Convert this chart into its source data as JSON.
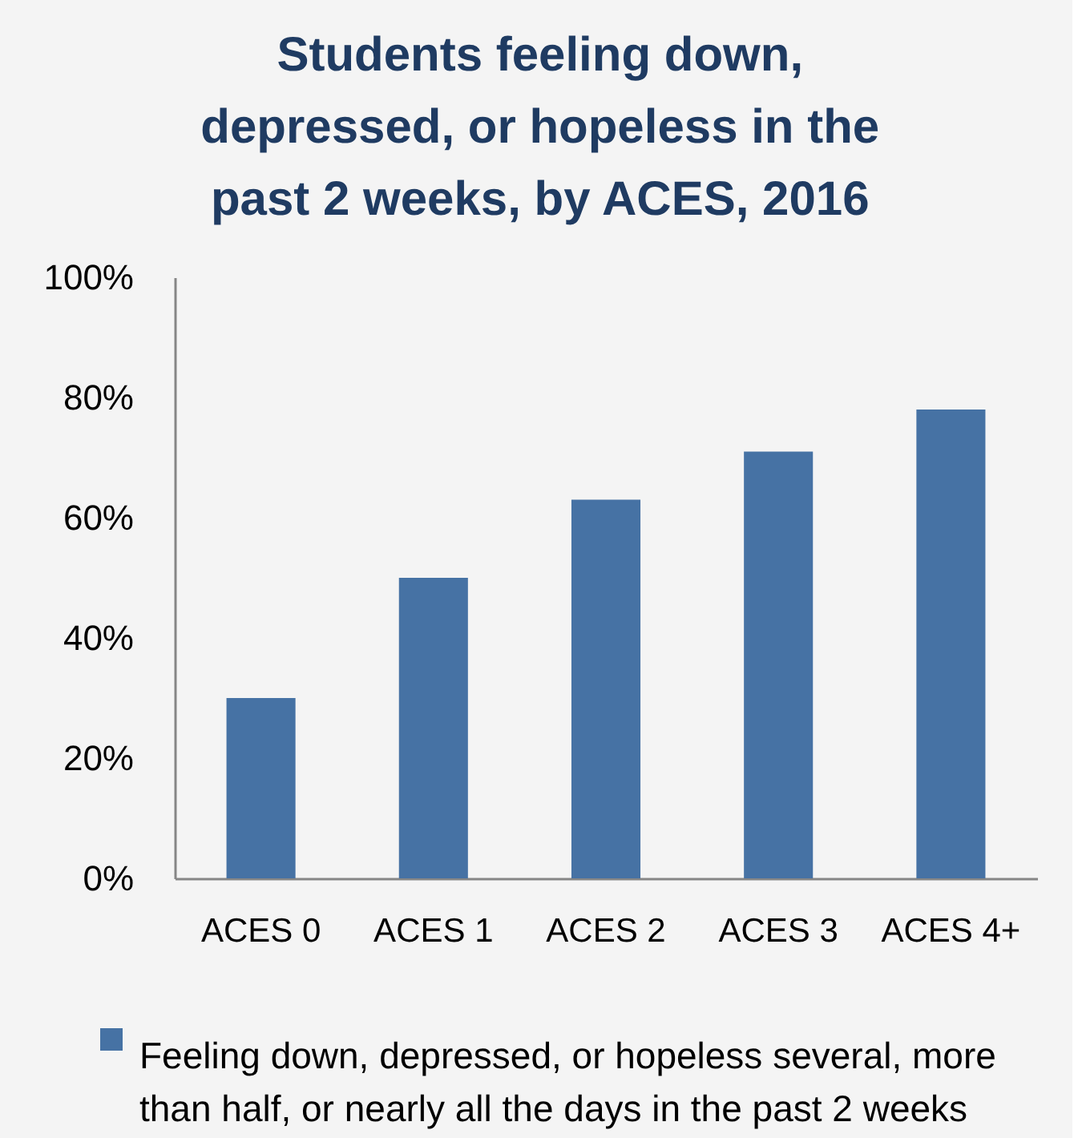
{
  "chart_data": {
    "type": "bar",
    "title": "Students feeling down, depressed, or hopeless in the past 2 weeks, by ACES, 2016",
    "categories": [
      "ACES 0",
      "ACES 1",
      "ACES 2",
      "ACES 3",
      "ACES 4+"
    ],
    "series": [
      {
        "name": "Feeling down, depressed, or hopeless several, more than half, or nearly all the days in the past 2 weeks",
        "color": "#4672a4",
        "values": [
          30,
          50,
          63,
          71,
          78
        ]
      }
    ],
    "ylim": [
      0,
      100
    ],
    "yticks": [
      {
        "value": 0,
        "label": "0%"
      },
      {
        "value": 20,
        "label": "20%"
      },
      {
        "value": 40,
        "label": "40%"
      },
      {
        "value": 60,
        "label": "60%"
      },
      {
        "value": 80,
        "label": "80%"
      },
      {
        "value": 100,
        "label": "100%"
      }
    ],
    "legend": "bottom"
  }
}
